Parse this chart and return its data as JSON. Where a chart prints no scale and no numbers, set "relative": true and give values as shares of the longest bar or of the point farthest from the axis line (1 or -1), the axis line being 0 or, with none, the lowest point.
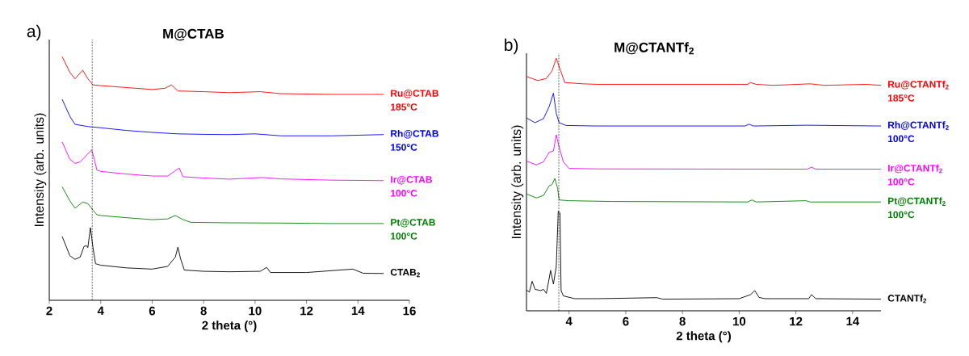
{
  "chart_data": [
    {
      "type": "line",
      "title": "M@CTAB",
      "xlabel": "2 theta (°)",
      "ylabel": "Intensity (arb. units)",
      "annotations": [
        "a)"
      ],
      "relative": true,
      "xlim": [
        2,
        16
      ],
      "xticks": [
        2,
        4,
        6,
        8,
        10,
        12,
        14,
        16
      ],
      "ref_lines": [
        {
          "axis": "x",
          "value": 3.67,
          "color": "#000000",
          "line_style": "dashed"
        }
      ],
      "series": [
        {
          "name": "Ru@CTAB 185°C",
          "color": "#ff0000",
          "x": [
            2.5,
            2.8,
            3.0,
            3.3,
            3.5,
            3.7,
            4,
            5,
            6,
            6.5,
            6.75,
            7.0,
            8,
            9,
            10.2,
            11,
            13,
            15
          ],
          "values": [
            1.0,
            0.936,
            0.909,
            0.944,
            0.909,
            0.884,
            0.881,
            0.873,
            0.865,
            0.87,
            0.884,
            0.859,
            0.856,
            0.852,
            0.856,
            0.848,
            0.845,
            0.845
          ]
        },
        {
          "name": "Rh@CTAB 150°C",
          "color": "#0000ff",
          "x": [
            2.5,
            2.8,
            3.0,
            3.5,
            4,
            5,
            6,
            7,
            8,
            9,
            10,
            11,
            13,
            15
          ],
          "values": [
            0.825,
            0.755,
            0.722,
            0.713,
            0.708,
            0.697,
            0.689,
            0.683,
            0.681,
            0.68,
            0.683,
            0.675,
            0.675,
            0.68
          ]
        },
        {
          "name": "Ir@CTAB 100°C",
          "color": "#ff00ff",
          "x": [
            2.5,
            2.8,
            3.0,
            3.2,
            3.4,
            3.6,
            3.65,
            3.75,
            3.85,
            4,
            5,
            6,
            6.6,
            6.8,
            7.05,
            7.2,
            8,
            9,
            10.3,
            11,
            13,
            15
          ],
          "values": [
            0.65,
            0.579,
            0.562,
            0.568,
            0.59,
            0.612,
            0.617,
            0.579,
            0.535,
            0.529,
            0.518,
            0.51,
            0.51,
            0.524,
            0.543,
            0.507,
            0.502,
            0.497,
            0.504,
            0.498,
            0.493,
            0.491
          ]
        },
        {
          "name": "Pt@CTAB 100°C",
          "color": "#008000",
          "x": [
            2.5,
            2.8,
            3.0,
            3.3,
            3.5,
            3.7,
            3.85,
            4,
            5,
            6,
            6.6,
            6.9,
            7.2,
            7.5,
            9,
            11,
            13,
            15
          ],
          "values": [
            0.466,
            0.408,
            0.378,
            0.403,
            0.397,
            0.37,
            0.351,
            0.348,
            0.339,
            0.331,
            0.334,
            0.348,
            0.331,
            0.32,
            0.318,
            0.317,
            0.315,
            0.315
          ]
        },
        {
          "name": "CTAB$_{2}$",
          "color": "#000000",
          "x": [
            2.5,
            2.8,
            3.0,
            3.2,
            3.35,
            3.45,
            3.5,
            3.6,
            3.7,
            3.8,
            4,
            5,
            6,
            6.6,
            6.9,
            7.0,
            7.1,
            7.25,
            8,
            9,
            10.2,
            10.45,
            10.6,
            12,
            13.8,
            14.2,
            15
          ],
          "values": [
            0.262,
            0.183,
            0.168,
            0.177,
            0.221,
            0.224,
            0.216,
            0.298,
            0.216,
            0.15,
            0.144,
            0.133,
            0.128,
            0.139,
            0.177,
            0.218,
            0.172,
            0.124,
            0.119,
            0.117,
            0.119,
            0.135,
            0.114,
            0.114,
            0.128,
            0.111,
            0.11
          ]
        }
      ]
    },
    {
      "type": "line",
      "title": "M@CTANTf$_{2}$",
      "xlabel": "2 theta (°)",
      "ylabel": "Intensity (arb. units)",
      "annotations": [
        "b)"
      ],
      "relative": true,
      "xlim": [
        2.5,
        15
      ],
      "xticks": [
        4,
        6,
        8,
        10,
        12,
        14
      ],
      "ref_lines": [
        {
          "axis": "x",
          "value": 3.64,
          "color": "#000000",
          "line_style": "dashed"
        }
      ],
      "series": [
        {
          "name": "Ru@CTANTf$_{2}$ 185°C",
          "color": "#ff0000",
          "x": [
            2.5,
            2.9,
            3.2,
            3.4,
            3.55,
            3.7,
            3.85,
            4.5,
            5,
            10.3,
            10.4,
            10.6,
            11.2,
            12.5,
            13,
            14.5,
            15
          ],
          "values": [
            0.928,
            0.912,
            0.92,
            0.95,
            1.0,
            0.952,
            0.904,
            0.899,
            0.897,
            0.897,
            0.904,
            0.897,
            0.893,
            0.899,
            0.893,
            0.897,
            0.893
          ]
        },
        {
          "name": "Rh@CTANTf$_{2}$ 100°C",
          "color": "#0000ff",
          "x": [
            2.5,
            2.8,
            3.1,
            3.3,
            3.45,
            3.55,
            3.65,
            3.9,
            5,
            10.2,
            10.35,
            10.5,
            12.4,
            15
          ],
          "values": [
            0.764,
            0.745,
            0.761,
            0.809,
            0.862,
            0.782,
            0.745,
            0.734,
            0.732,
            0.732,
            0.739,
            0.732,
            0.735,
            0.732
          ]
        },
        {
          "name": "Ir@CTANTf$_{2}$ 100°C",
          "color": "#ff00ff",
          "x": [
            2.5,
            2.85,
            3.1,
            3.3,
            3.45,
            3.55,
            3.65,
            3.8,
            4,
            5,
            12.4,
            12.55,
            12.7,
            15
          ],
          "values": [
            0.593,
            0.578,
            0.59,
            0.628,
            0.633,
            0.697,
            0.649,
            0.59,
            0.564,
            0.562,
            0.561,
            0.569,
            0.561,
            0.561
          ]
        },
        {
          "name": "Pt@CTANTf$_{2}$ 100°C",
          "color": "#008000",
          "x": [
            2.5,
            2.85,
            3.1,
            3.3,
            3.4,
            3.5,
            3.6,
            3.65,
            4,
            5.5,
            10.3,
            10.45,
            10.6,
            12.35,
            12.5,
            15
          ],
          "values": [
            0.463,
            0.447,
            0.457,
            0.495,
            0.5,
            0.524,
            0.484,
            0.439,
            0.436,
            0.433,
            0.431,
            0.439,
            0.431,
            0.436,
            0.431,
            0.431
          ]
        },
        {
          "name": "CTANTf$_{2}$",
          "color": "#000000",
          "x": [
            2.5,
            2.6,
            2.7,
            2.8,
            3.0,
            3.1,
            3.2,
            3.3,
            3.35,
            3.45,
            3.55,
            3.62,
            3.68,
            3.72,
            3.8,
            4.2,
            5,
            7.1,
            7.3,
            10,
            10.4,
            10.55,
            10.7,
            10.9,
            12.45,
            12.55,
            12.7,
            15
          ],
          "values": [
            0.082,
            0.074,
            0.117,
            0.085,
            0.08,
            0.085,
            0.069,
            0.128,
            0.16,
            0.106,
            0.176,
            0.394,
            0.388,
            0.08,
            0.059,
            0.048,
            0.048,
            0.052,
            0.046,
            0.048,
            0.064,
            0.08,
            0.053,
            0.048,
            0.048,
            0.064,
            0.048,
            0.046
          ]
        }
      ]
    }
  ]
}
